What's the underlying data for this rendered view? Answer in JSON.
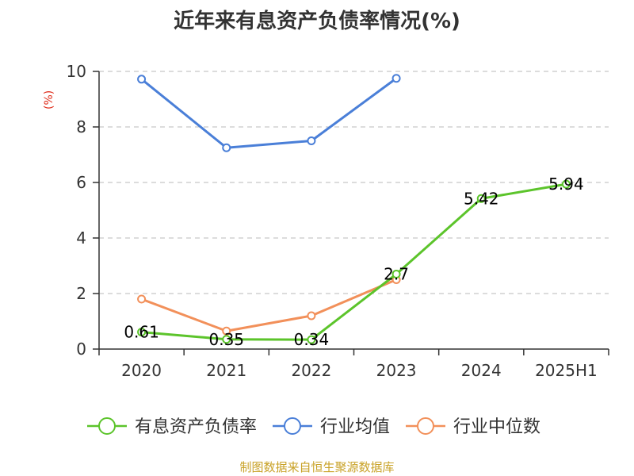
{
  "chart_data": {
    "type": "line",
    "title": "近年来有息资产负债率情况(%)",
    "ylabel": "(%)",
    "xlabel": "",
    "categories": [
      "2020",
      "2021",
      "2022",
      "2023",
      "2024",
      "2025H1"
    ],
    "ylim": [
      0,
      10
    ],
    "yticks": [
      "0",
      "2",
      "4",
      "6",
      "8",
      "10"
    ],
    "grid": true,
    "legend_position": "bottom",
    "series": [
      {
        "name": "有息资产负债率",
        "color": "#5cc42b",
        "values": [
          0.61,
          0.35,
          0.34,
          2.7,
          5.42,
          5.94
        ],
        "labels": [
          "0.61",
          "0.35",
          "0.34",
          "2.7",
          "5.42",
          "5.94"
        ]
      },
      {
        "name": "行业均值",
        "color": "#4a7fd8",
        "values": [
          9.72,
          7.25,
          7.5,
          9.75,
          null,
          null
        ]
      },
      {
        "name": "行业中位数",
        "color": "#f2905a",
        "values": [
          1.8,
          0.65,
          1.2,
          2.5,
          null,
          null
        ]
      }
    ],
    "source": "制图数据来自恒生聚源数据库"
  }
}
